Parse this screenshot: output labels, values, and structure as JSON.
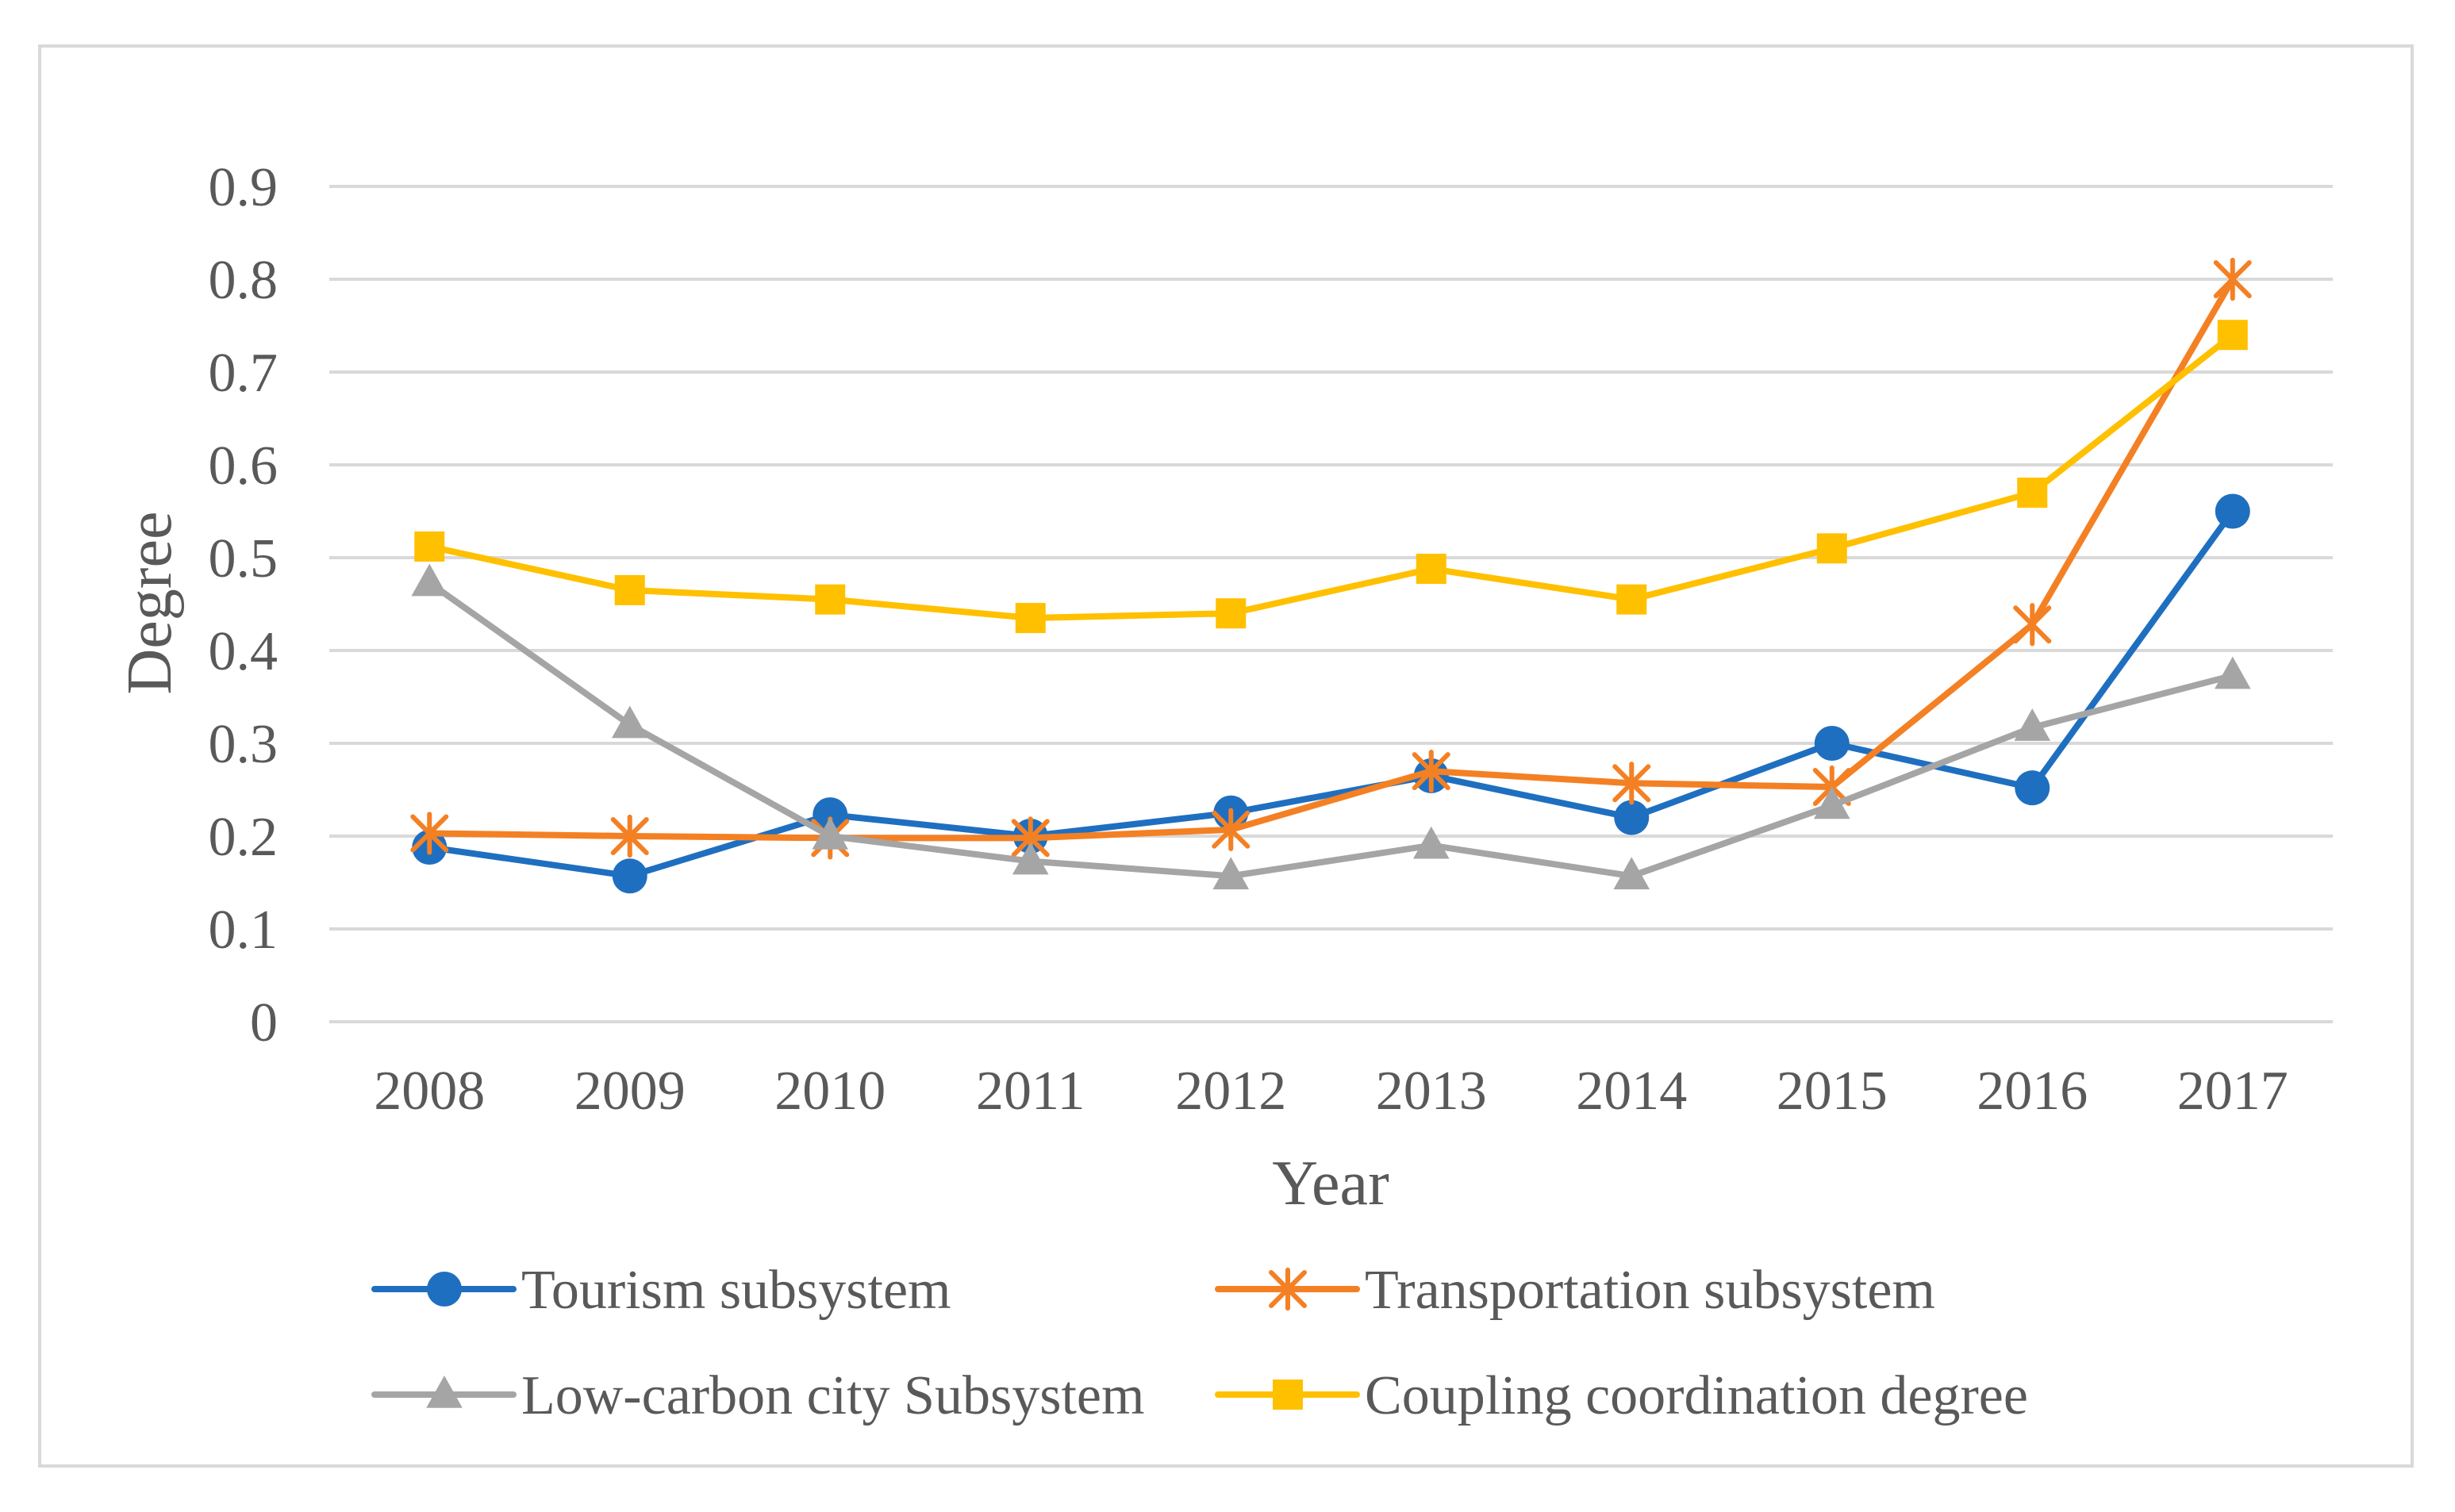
{
  "chart_data": {
    "type": "line",
    "title": "",
    "xlabel": "Year",
    "ylabel": "Degree",
    "categories": [
      "2008",
      "2009",
      "2010",
      "2011",
      "2012",
      "2013",
      "2014",
      "2015",
      "2016",
      "2017"
    ],
    "ylim": [
      0,
      0.9
    ],
    "yticks": [
      "0",
      "0.1",
      "0.2",
      "0.3",
      "0.4",
      "0.5",
      "0.6",
      "0.7",
      "0.8",
      "0.9"
    ],
    "grid": true,
    "legend_position": "bottom",
    "series": [
      {
        "name": "Tourism subsystem",
        "values": [
          0.188,
          0.157,
          0.223,
          0.2,
          0.225,
          0.265,
          0.22,
          0.3,
          0.252,
          0.55
        ],
        "color": "#1f6fc0",
        "marker": "circle"
      },
      {
        "name": "Transportation subsystem",
        "values": [
          0.203,
          0.2,
          0.198,
          0.198,
          0.207,
          0.27,
          0.257,
          0.253,
          0.428,
          0.8
        ],
        "color": "#f48024",
        "marker": "asterisk"
      },
      {
        "name": "Low-carbon city Subsystem",
        "values": [
          0.473,
          0.32,
          0.2,
          0.173,
          0.157,
          0.19,
          0.157,
          0.233,
          0.317,
          0.373
        ],
        "color": "#a5a5a5",
        "marker": "triangle"
      },
      {
        "name": "Coupling coordination degree",
        "values": [
          0.512,
          0.465,
          0.455,
          0.435,
          0.44,
          0.488,
          0.455,
          0.51,
          0.57,
          0.74
        ],
        "color": "#ffc000",
        "marker": "square"
      }
    ]
  }
}
